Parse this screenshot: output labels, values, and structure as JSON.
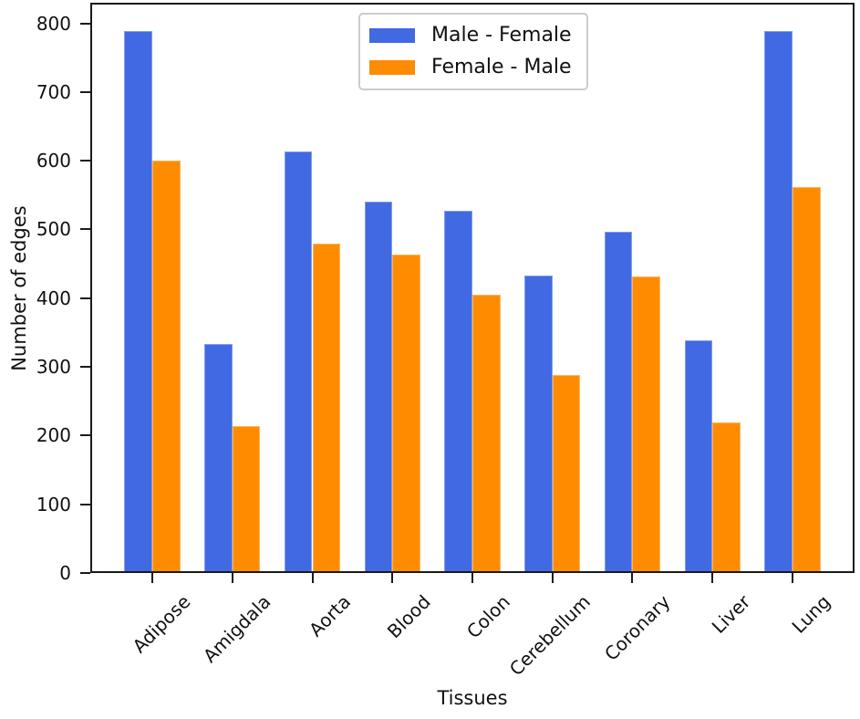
{
  "chart_data": {
    "type": "bar",
    "title": "",
    "xlabel": "Tissues",
    "ylabel": "Number of edges",
    "categories": [
      "Adipose",
      "Amigdala",
      "Aorta",
      "Blood",
      "Colon",
      "Cerebellum",
      "Coronary",
      "Liver",
      "Lung"
    ],
    "series": [
      {
        "name": "Male - Female",
        "color": "#4169E1",
        "values": [
          789,
          333,
          613,
          541,
          527,
          433,
          497,
          338,
          789
        ]
      },
      {
        "name": "Female - Male",
        "color": "#FF8C00",
        "values": [
          600,
          214,
          479,
          463,
          405,
          288,
          432,
          219,
          562
        ]
      }
    ],
    "ylim": [
      0,
      830
    ],
    "yticks": [
      0,
      100,
      200,
      300,
      400,
      500,
      600,
      700,
      800
    ],
    "legend_position": "upper center",
    "grid": false,
    "bar_width_fraction": 0.35,
    "x_tick_rotation_deg": 45
  }
}
